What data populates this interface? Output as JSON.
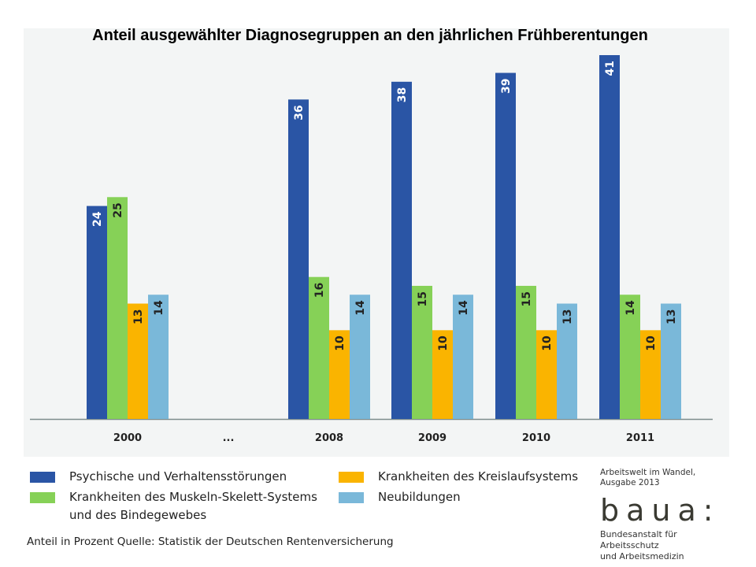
{
  "title": "Anteil ausgewählter Diagnosegruppen an den jährlichen Frühberentungen",
  "chart_data": {
    "type": "bar",
    "categories": [
      "2000",
      "...",
      "2008",
      "2009",
      "2010",
      "2011"
    ],
    "series": [
      {
        "name": "Psychische und Verhaltensstörungen",
        "color": "#2a55a5",
        "values": [
          24,
          null,
          36,
          38,
          39,
          41
        ]
      },
      {
        "name": "Krankheiten des Muskeln-Skelett-Systems und des Bindegewebes",
        "color": "#86d157",
        "values": [
          25,
          null,
          16,
          15,
          15,
          14
        ]
      },
      {
        "name": "Krankheiten des Kreislaufsystems",
        "color": "#fab400",
        "values": [
          13,
          null,
          10,
          10,
          10,
          10
        ]
      },
      {
        "name": "Neubildungen",
        "color": "#7ab8d9",
        "values": [
          14,
          null,
          14,
          14,
          13,
          13
        ]
      }
    ],
    "ylim": [
      0,
      41
    ],
    "grid": false,
    "legend": "bottom"
  },
  "legend": {
    "items": [
      {
        "label": "Psychische und Verhaltensstörungen",
        "color": "#2a55a5"
      },
      {
        "label": "Krankheiten des Muskeln-Skelett-Systems",
        "label2": "und des Bindegewebes",
        "color": "#86d157"
      },
      {
        "label": "Krankheiten des Kreislaufsystems",
        "color": "#fab400"
      },
      {
        "label": "Neubildungen",
        "color": "#7ab8d9"
      }
    ]
  },
  "footnote": "Anteil in Prozent  Quelle: Statistik der Deutschen Rentenversicherung",
  "publication": {
    "line1": "Arbeitswelt im Wandel,",
    "line2": "Ausgabe 2013"
  },
  "logo": {
    "text": "baua:",
    "line1": "Bundesanstalt für Arbeitsschutz",
    "line2": "und Arbeitsmedizin"
  }
}
